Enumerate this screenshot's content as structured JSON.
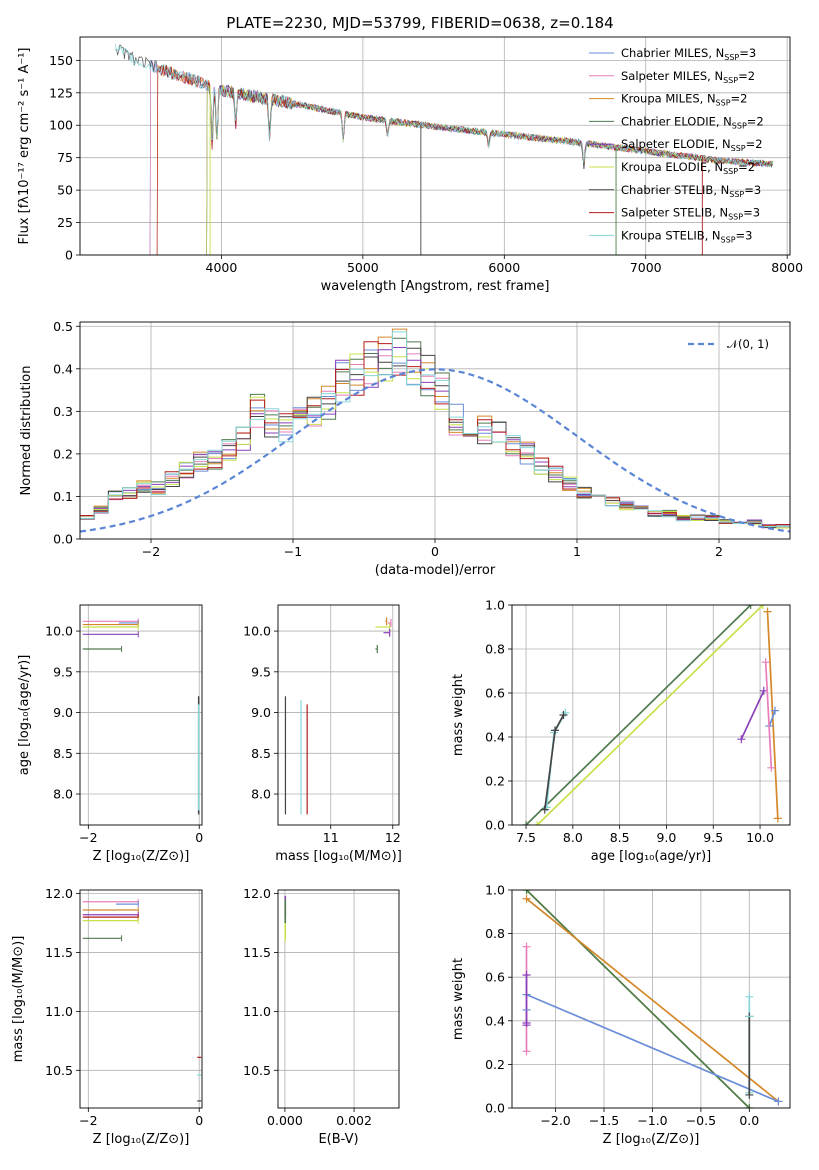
{
  "figure_title": "PLATE=2230, MJD=53799, FIBERID=0638, z=0.184",
  "colors": [
    "#6b8dd8",
    "#e87ebc",
    "#d4882a",
    "#4f7a4f",
    "#8a3fb8",
    "#c8e04a",
    "#444444",
    "#b31d1d",
    "#86d6d8"
  ],
  "chart_data": [
    {
      "id": "spectrum",
      "type": "line",
      "xlabel": "wavelength [Angstrom, rest frame]",
      "ylabel": "Flux [fλ10⁻¹⁷ erg cm⁻² s⁻¹ A⁻¹]",
      "xlim": [
        3000,
        8020
      ],
      "ylim": [
        0,
        168
      ],
      "xticks": [
        "4000",
        "5000",
        "6000",
        "7000",
        "8000"
      ],
      "yticks": [
        "0",
        "25",
        "50",
        "75",
        "100",
        "125",
        "150"
      ],
      "continuum": [
        [
          3250,
          160
        ],
        [
          3400,
          150
        ],
        [
          3600,
          142
        ],
        [
          3800,
          135
        ],
        [
          4000,
          127
        ],
        [
          4500,
          117
        ],
        [
          5000,
          106
        ],
        [
          5500,
          99
        ],
        [
          6000,
          93
        ],
        [
          6500,
          87
        ],
        [
          7000,
          80
        ],
        [
          7500,
          73
        ],
        [
          7900,
          70
        ]
      ],
      "series": [
        {
          "name": "Chabrier MILES, N",
          "sub": "SSP",
          "suffix": "=3",
          "start": 3500
        },
        {
          "name": "Salpeter MILES, N",
          "sub": "SSP",
          "suffix": "=2",
          "start": 3500
        },
        {
          "name": "Kroupa MILES, N",
          "sub": "SSP",
          "suffix": "=2",
          "start": 3550
        },
        {
          "name": "Chabrier ELODIE, N",
          "sub": "SSP",
          "suffix": "=2",
          "start": 3900
        },
        {
          "name": "Salpeter ELODIE, N",
          "sub": "SSP",
          "suffix": "=2",
          "start": 3900
        },
        {
          "name": "Kroupa ELODIE, N",
          "sub": "SSP",
          "suffix": "=2",
          "start": 3900
        },
        {
          "name": "Chabrier STELIB, N",
          "sub": "SSP",
          "suffix": "=3",
          "start": 3250
        },
        {
          "name": "Salpeter STELIB, N",
          "sub": "SSP",
          "suffix": "=3",
          "start": 3550
        },
        {
          "name": "Kroupa STELIB, N",
          "sub": "SSP",
          "suffix": "=3",
          "start": 3250
        }
      ]
    },
    {
      "id": "residuals",
      "type": "line",
      "xlabel": "(data-model)/error",
      "ylabel": "Normed distribution",
      "xlim": [
        -2.5,
        2.5
      ],
      "ylim": [
        0,
        0.51
      ],
      "xticks": [
        "−2",
        "−1",
        "0",
        "1",
        "2"
      ],
      "yticks": [
        "0.0",
        "0.1",
        "0.2",
        "0.3",
        "0.4",
        "0.5"
      ],
      "legend": "𝒩(0, 1)",
      "bin_width": 0.1,
      "hist_base": [
        0.05,
        0.07,
        0.1,
        0.11,
        0.12,
        0.12,
        0.14,
        0.16,
        0.18,
        0.19,
        0.21,
        0.24,
        0.3,
        0.27,
        0.26,
        0.28,
        0.3,
        0.32,
        0.37,
        0.39,
        0.41,
        0.42,
        0.44,
        0.41,
        0.39,
        0.35,
        0.28,
        0.27,
        0.26,
        0.25,
        0.22,
        0.2,
        0.17,
        0.15,
        0.13,
        0.11,
        0.1,
        0.09,
        0.08,
        0.07,
        0.06,
        0.06,
        0.05,
        0.05,
        0.05,
        0.04,
        0.04,
        0.04,
        0.03,
        0.03
      ]
    },
    {
      "id": "age-vs-Z",
      "type": "scatter",
      "xlabel": "Z [log₁₀(Z/Z⊙)]",
      "ylabel": "age  [log₁₀(age/yr)]",
      "xlim": [
        -2.15,
        0.05
      ],
      "ylim": [
        7.62,
        10.32
      ],
      "xticks": [
        "−2",
        "0"
      ],
      "yticks": [
        "8.0",
        "8.5",
        "9.0",
        "9.5",
        "10.0"
      ]
    },
    {
      "id": "age-vs-mass",
      "type": "scatter",
      "xlabel": "mass [log₁₀(M/M⊙)]",
      "xlim": [
        10.15,
        12.1
      ],
      "ylim": [
        7.62,
        10.32
      ],
      "xticks": [
        "11",
        "12"
      ],
      "yticks": [
        "8.0",
        "8.5",
        "9.0",
        "9.5",
        "10.0"
      ]
    },
    {
      "id": "weight-vs-age",
      "type": "line",
      "xlabel": "age  [log₁₀(age/yr)]",
      "ylabel": "mass weight",
      "xlim": [
        7.35,
        10.32
      ],
      "ylim": [
        0,
        1.0
      ],
      "xticks": [
        "7.5",
        "8.0",
        "8.5",
        "9.0",
        "9.5",
        "10.0"
      ],
      "yticks": [
        "0.0",
        "0.2",
        "0.4",
        "0.6",
        "0.8",
        "1.0"
      ]
    },
    {
      "id": "mass-vs-Z",
      "type": "scatter",
      "xlabel": "Z [log₁₀(Z/Z⊙)]",
      "ylabel": "mass [log₁₀(M/M⊙)]",
      "xlim": [
        -2.15,
        0.05
      ],
      "ylim": [
        10.18,
        12.03
      ],
      "xticks": [
        "−2",
        "0"
      ],
      "yticks": [
        "10.5",
        "11.0",
        "11.5",
        "12.0"
      ]
    },
    {
      "id": "mass-vs-EBV",
      "type": "scatter",
      "xlabel": "E(B-V)",
      "xlim": [
        -0.0002,
        0.0033
      ],
      "ylim": [
        10.18,
        12.03
      ],
      "xticks": [
        "0.000",
        "0.002"
      ],
      "yticks": [
        "10.5",
        "11.0",
        "11.5",
        "12.0"
      ]
    },
    {
      "id": "weight-vs-Z",
      "type": "line",
      "xlabel": "Z [log₁₀(Z/Z⊙)]",
      "ylabel": "mass weight",
      "xlim": [
        -2.45,
        0.42
      ],
      "ylim": [
        0,
        1.0
      ],
      "xticks": [
        "−2.0",
        "−1.5",
        "−1.0",
        "−0.5",
        "0.0"
      ],
      "yticks": [
        "0.0",
        "0.2",
        "0.4",
        "0.6",
        "0.8",
        "1.0"
      ]
    }
  ]
}
